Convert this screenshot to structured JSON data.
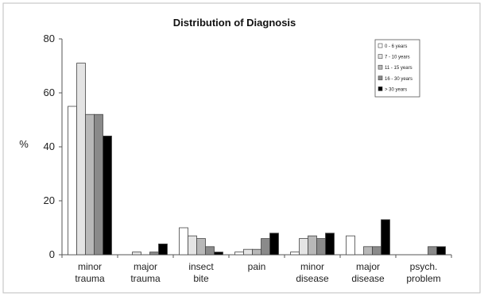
{
  "chart_data": {
    "type": "bar",
    "title": "Distribution of Diagnosis",
    "ylabel": "%",
    "xlabel": "",
    "ylim": [
      0,
      80
    ],
    "yticks": [
      0,
      20,
      40,
      60,
      80
    ],
    "grid": false,
    "legend_position": "top-right",
    "categories": [
      [
        "minor",
        "trauma"
      ],
      [
        "major",
        "trauma"
      ],
      [
        "insect",
        "bite"
      ],
      [
        "pain",
        ""
      ],
      [
        "minor",
        "disease"
      ],
      [
        "major",
        "disease"
      ],
      [
        "psych.",
        "problem"
      ]
    ],
    "series": [
      {
        "name": "0 - 6 years",
        "color": "#ffffff",
        "values": [
          55,
          0,
          10,
          1,
          1,
          7,
          0
        ]
      },
      {
        "name": "7 - 10 years",
        "color": "#e4e4e4",
        "values": [
          71,
          1,
          7,
          2,
          6,
          0,
          0
        ]
      },
      {
        "name": "11 - 15 years",
        "color": "#b8b8b8",
        "values": [
          52,
          0,
          6,
          2,
          7,
          3,
          0
        ]
      },
      {
        "name": "16 - 30 years",
        "color": "#8a8a8a",
        "values": [
          52,
          1,
          3,
          6,
          6,
          3,
          3
        ]
      },
      {
        "name": "> 30 years",
        "color": "#000000",
        "values": [
          44,
          4,
          1,
          8,
          8,
          13,
          3
        ]
      }
    ]
  }
}
